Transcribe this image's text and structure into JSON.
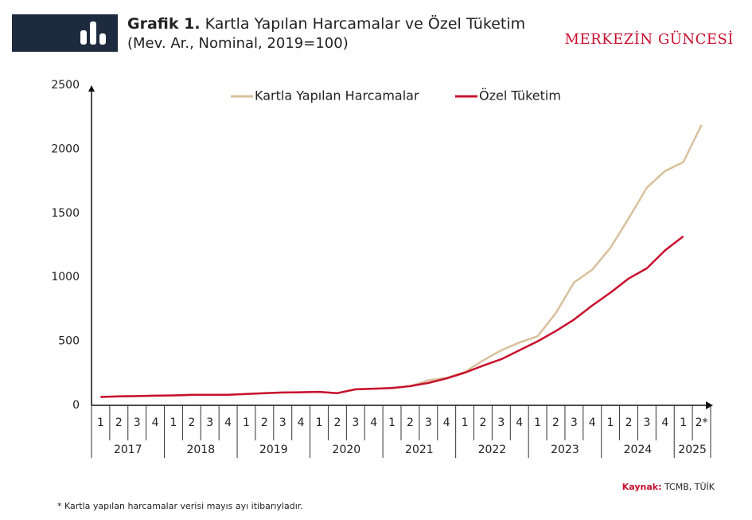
{
  "chart_data": {
    "type": "line",
    "title_prefix": "Grafik 1.",
    "title": "Kartla Yapılan Harcamalar ve Özel Tüketim",
    "subtitle": "(Mev. Ar., Nominal, 2019=100)",
    "brand": "MERKEZİN GÜNCESİ",
    "categories": [
      "1",
      "2",
      "3",
      "4",
      "1",
      "2",
      "3",
      "4",
      "1",
      "2",
      "3",
      "4",
      "1",
      "2",
      "3",
      "4",
      "1",
      "2",
      "3",
      "4",
      "1",
      "2",
      "3",
      "4",
      "1",
      "2",
      "3",
      "4",
      "1",
      "2",
      "3",
      "4",
      "1",
      "2*"
    ],
    "years": [
      "2017",
      "2018",
      "2019",
      "2020",
      "2021",
      "2022",
      "2023",
      "2024",
      "2025"
    ],
    "series": [
      {
        "name": "Kartla Yapılan Harcamalar",
        "color": "#d9c09c",
        "values": [
          65,
          70,
          72,
          75,
          75,
          80,
          82,
          82,
          88,
          95,
          100,
          102,
          105,
          95,
          125,
          130,
          135,
          150,
          195,
          215,
          260,
          350,
          430,
          490,
          540,
          720,
          960,
          1060,
          1230,
          1460,
          1700,
          1830,
          1900,
          2190
        ]
      },
      {
        "name": "Özel Tüketim",
        "color": "#c8102e",
        "values": [
          65,
          70,
          72,
          75,
          78,
          82,
          83,
          82,
          88,
          95,
          100,
          102,
          105,
          95,
          125,
          130,
          135,
          150,
          175,
          210,
          255,
          310,
          360,
          430,
          500,
          580,
          670,
          780,
          880,
          990,
          1070,
          1210,
          1320,
          null
        ]
      }
    ],
    "ylim": [
      0,
      2500
    ],
    "yticks": [
      0,
      500,
      1000,
      1500,
      2000,
      2500
    ],
    "source_label": "Kaynak:",
    "source": "TCMB, TÜİK",
    "footnote": "* Kartla yapılan harcamalar verisi mayıs ayı itibarıyladır."
  }
}
